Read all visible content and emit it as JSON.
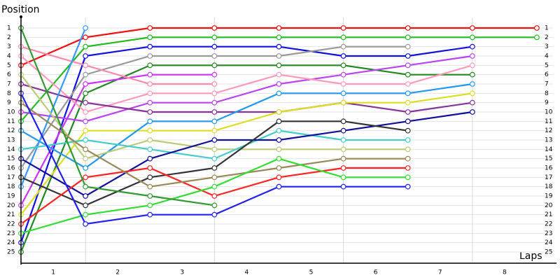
{
  "chart_data": {
    "type": "line",
    "y_label": "Position",
    "x_label": "Laps",
    "x": [
      0,
      1,
      2,
      3,
      4,
      5,
      6,
      7,
      8
    ],
    "xlim": [
      0,
      8.25
    ],
    "ylim": [
      25,
      1
    ],
    "xticks": [
      {
        "value": 0.5,
        "label": "1"
      },
      {
        "value": 1.5,
        "label": "2"
      },
      {
        "value": 2.5,
        "label": "3"
      },
      {
        "value": 3.5,
        "label": "4"
      },
      {
        "value": 4.5,
        "label": "5"
      },
      {
        "value": 5.5,
        "label": "6"
      },
      {
        "value": 6.5,
        "label": "7"
      },
      {
        "value": 7.5,
        "label": "8"
      }
    ],
    "yticks": [
      1,
      2,
      3,
      4,
      5,
      6,
      7,
      8,
      9,
      10,
      11,
      12,
      13,
      14,
      15,
      16,
      17,
      18,
      19,
      20,
      21,
      22,
      23,
      24,
      25
    ],
    "grid": true,
    "series": [
      {
        "color": "#ee1111",
        "values": [
          5,
          2,
          1,
          1,
          1,
          1,
          1,
          1,
          1
        ]
      },
      {
        "color": "#22bb22",
        "values": [
          11,
          3,
          2,
          2,
          2,
          2,
          2,
          2,
          2
        ]
      },
      {
        "color": "#1111dd",
        "values": [
          24,
          4,
          3,
          3,
          3,
          4,
          4,
          3,
          null
        ]
      },
      {
        "color": "#999999",
        "values": [
          16,
          6,
          4,
          4,
          4,
          3,
          3,
          null,
          null
        ]
      },
      {
        "color": "#228822",
        "values": [
          25,
          8,
          5,
          5,
          5,
          5,
          6,
          6,
          null
        ]
      },
      {
        "color": "#cc33ee",
        "values": [
          20,
          7,
          6,
          6,
          null,
          null,
          null,
          null,
          null
        ]
      },
      {
        "color": "#bb44ee",
        "values": [
          10,
          11,
          9,
          9,
          7,
          6,
          5,
          4,
          null
        ]
      },
      {
        "color": "#ff88aa",
        "values": [
          3,
          5,
          7,
          7,
          null,
          null,
          null,
          null,
          null
        ]
      },
      {
        "color": "#ff99bb",
        "values": [
          4,
          10,
          8,
          8,
          6,
          7,
          7,
          5,
          null
        ]
      },
      {
        "color": "#883399",
        "values": [
          7,
          9,
          10,
          10,
          10,
          9,
          10,
          9,
          null
        ]
      },
      {
        "color": "#dddd22",
        "values": [
          21,
          12,
          12,
          12,
          10,
          9,
          9,
          8,
          null
        ]
      },
      {
        "color": "#2299ee",
        "values": [
          12,
          16,
          11,
          11,
          8,
          8,
          8,
          7,
          null
        ]
      },
      {
        "color": "#3399ff",
        "values": [
          18,
          1,
          null,
          null,
          null,
          null,
          null,
          null,
          null
        ]
      },
      {
        "color": "#bbcc77",
        "values": [
          6,
          15,
          13,
          14,
          14,
          14,
          14,
          null,
          null
        ]
      },
      {
        "color": "#44cccc",
        "values": [
          14,
          13,
          14,
          15,
          12,
          13,
          13,
          null,
          null
        ]
      },
      {
        "color": "#111199",
        "values": [
          15,
          19,
          15,
          13,
          13,
          12,
          11,
          10,
          null
        ]
      },
      {
        "color": "#333333",
        "values": [
          17,
          20,
          17,
          16,
          11,
          11,
          12,
          null,
          null
        ]
      },
      {
        "color": "#ff2222",
        "values": [
          22,
          17,
          16,
          19,
          17,
          16,
          16,
          null,
          null
        ]
      },
      {
        "color": "#998855",
        "values": [
          9,
          14,
          18,
          17,
          16,
          15,
          15,
          null,
          null
        ]
      },
      {
        "color": "#33dd33",
        "values": [
          23,
          21,
          20,
          18,
          15,
          17,
          17,
          null,
          null
        ]
      },
      {
        "color": "#2222ee",
        "values": [
          8,
          22,
          21,
          21,
          18,
          18,
          18,
          null,
          null
        ]
      },
      {
        "color": "#339933",
        "values": [
          1,
          18,
          19,
          20,
          null,
          null,
          null,
          null,
          null
        ]
      }
    ]
  }
}
